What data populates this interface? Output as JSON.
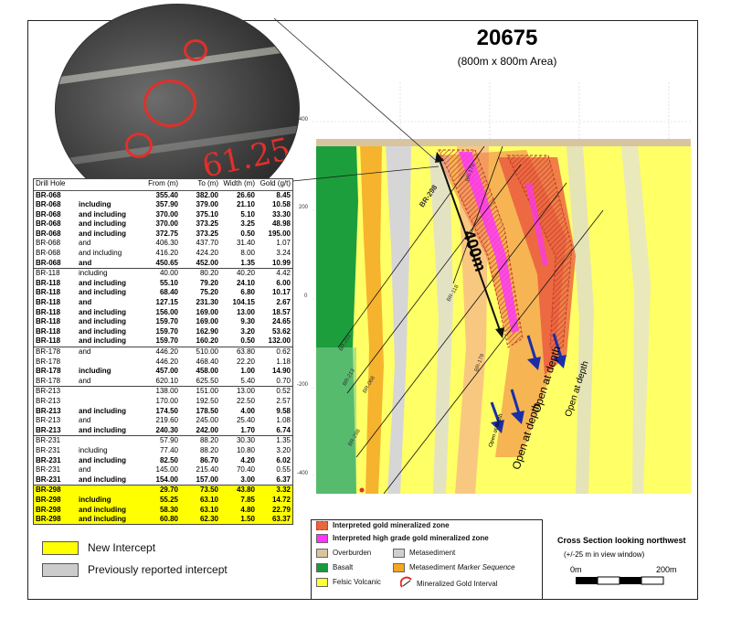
{
  "section": {
    "title": "20675",
    "subtitle": "(800m x 800m Area)",
    "elevations": [
      "400",
      "200",
      "0",
      "-200",
      "-400"
    ],
    "drill_labels": [
      "BR-298",
      "BR-178",
      "BR-118",
      "BR-231",
      "BR-213",
      "BR-068",
      "BR-178",
      "BR-298"
    ],
    "length_label": "400m",
    "open_labels": [
      "Open at depth",
      "Open at depth",
      "Open at depth",
      "Open at depth"
    ]
  },
  "table": {
    "headers": [
      "Drill Hole",
      "",
      "From (m)",
      "To (m)",
      "Width (m)",
      "Gold (g/t)"
    ],
    "rows": [
      {
        "hole": "BR-068",
        "note": "",
        "from": "355.40",
        "to": "382.00",
        "width": "26.60",
        "gold": "8.45",
        "bold": true,
        "group_top": false,
        "new": false
      },
      {
        "hole": "BR-068",
        "note": "including",
        "from": "357.90",
        "to": "379.00",
        "width": "21.10",
        "gold": "10.58",
        "bold": true,
        "group_top": false,
        "new": false
      },
      {
        "hole": "BR-068",
        "note": "and including",
        "from": "370.00",
        "to": "375.10",
        "width": "5.10",
        "gold": "33.30",
        "bold": true,
        "group_top": false,
        "new": false
      },
      {
        "hole": "BR-068",
        "note": "and including",
        "from": "370.00",
        "to": "373.25",
        "width": "3.25",
        "gold": "48.98",
        "bold": true,
        "group_top": false,
        "new": false
      },
      {
        "hole": "BR-068",
        "note": "and including",
        "from": "372.75",
        "to": "373.25",
        "width": "0.50",
        "gold": "195.00",
        "bold": true,
        "group_top": false,
        "new": false
      },
      {
        "hole": "BR-068",
        "note": "and",
        "from": "406.30",
        "to": "437.70",
        "width": "31.40",
        "gold": "1.07",
        "bold": false,
        "group_top": false,
        "new": false
      },
      {
        "hole": "BR-068",
        "note": "and including",
        "from": "416.20",
        "to": "424.20",
        "width": "8.00",
        "gold": "3.24",
        "bold": false,
        "group_top": false,
        "new": false
      },
      {
        "hole": "BR-068",
        "note": "and",
        "from": "450.65",
        "to": "452.00",
        "width": "1.35",
        "gold": "10.99",
        "bold": true,
        "group_top": false,
        "new": false
      },
      {
        "hole": "BR-118",
        "note": "including",
        "from": "40.00",
        "to": "80.20",
        "width": "40.20",
        "gold": "4.42",
        "bold": false,
        "group_top": true,
        "new": false
      },
      {
        "hole": "BR-118",
        "note": "and including",
        "from": "55.10",
        "to": "79.20",
        "width": "24.10",
        "gold": "6.00",
        "bold": true,
        "group_top": false,
        "new": false
      },
      {
        "hole": "BR-118",
        "note": "and including",
        "from": "68.40",
        "to": "75.20",
        "width": "6.80",
        "gold": "10.17",
        "bold": true,
        "group_top": false,
        "new": false
      },
      {
        "hole": "BR-118",
        "note": "and",
        "from": "127.15",
        "to": "231.30",
        "width": "104.15",
        "gold": "2.67",
        "bold": true,
        "group_top": false,
        "new": false
      },
      {
        "hole": "BR-118",
        "note": "and including",
        "from": "156.00",
        "to": "169.00",
        "width": "13.00",
        "gold": "18.57",
        "bold": true,
        "group_top": false,
        "new": false
      },
      {
        "hole": "BR-118",
        "note": "and including",
        "from": "159.70",
        "to": "169.00",
        "width": "9.30",
        "gold": "24.65",
        "bold": true,
        "group_top": false,
        "new": false
      },
      {
        "hole": "BR-118",
        "note": "and including",
        "from": "159.70",
        "to": "162.90",
        "width": "3.20",
        "gold": "53.62",
        "bold": true,
        "group_top": false,
        "new": false
      },
      {
        "hole": "BR-118",
        "note": "and including",
        "from": "159.70",
        "to": "160.20",
        "width": "0.50",
        "gold": "132.00",
        "bold": true,
        "group_top": false,
        "new": false
      },
      {
        "hole": "BR-178",
        "note": "and",
        "from": "446.20",
        "to": "510.00",
        "width": "63.80",
        "gold": "0.62",
        "bold": false,
        "group_top": true,
        "new": false
      },
      {
        "hole": "BR-178",
        "note": "",
        "from": "446.20",
        "to": "468.40",
        "width": "22.20",
        "gold": "1.18",
        "bold": false,
        "group_top": false,
        "new": false
      },
      {
        "hole": "BR-178",
        "note": "including",
        "from": "457.00",
        "to": "458.00",
        "width": "1.00",
        "gold": "14.90",
        "bold": true,
        "group_top": false,
        "new": false
      },
      {
        "hole": "BR-178",
        "note": "and",
        "from": "620.10",
        "to": "625.50",
        "width": "5.40",
        "gold": "0.70",
        "bold": false,
        "group_top": false,
        "new": false
      },
      {
        "hole": "BR-213",
        "note": "",
        "from": "138.00",
        "to": "151.00",
        "width": "13.00",
        "gold": "0.52",
        "bold": false,
        "group_top": true,
        "new": false
      },
      {
        "hole": "BR-213",
        "note": "",
        "from": "170.00",
        "to": "192.50",
        "width": "22.50",
        "gold": "2.57",
        "bold": false,
        "group_top": false,
        "new": false
      },
      {
        "hole": "BR-213",
        "note": "and including",
        "from": "174.50",
        "to": "178.50",
        "width": "4.00",
        "gold": "9.58",
        "bold": true,
        "group_top": false,
        "new": false
      },
      {
        "hole": "BR-213",
        "note": "and",
        "from": "219.60",
        "to": "245.00",
        "width": "25.40",
        "gold": "1.08",
        "bold": false,
        "group_top": false,
        "new": false
      },
      {
        "hole": "BR-213",
        "note": "and including",
        "from": "240.30",
        "to": "242.00",
        "width": "1.70",
        "gold": "6.74",
        "bold": true,
        "group_top": false,
        "new": false
      },
      {
        "hole": "BR-231",
        "note": "",
        "from": "57.90",
        "to": "88.20",
        "width": "30.30",
        "gold": "1.35",
        "bold": false,
        "group_top": true,
        "new": false
      },
      {
        "hole": "BR-231",
        "note": "including",
        "from": "77.40",
        "to": "88.20",
        "width": "10.80",
        "gold": "3.20",
        "bold": false,
        "group_top": false,
        "new": false
      },
      {
        "hole": "BR-231",
        "note": "and including",
        "from": "82.50",
        "to": "86.70",
        "width": "4.20",
        "gold": "6.02",
        "bold": true,
        "group_top": false,
        "new": false
      },
      {
        "hole": "BR-231",
        "note": "and",
        "from": "145.00",
        "to": "215.40",
        "width": "70.40",
        "gold": "0.55",
        "bold": false,
        "group_top": false,
        "new": false
      },
      {
        "hole": "BR-231",
        "note": "and including",
        "from": "154.00",
        "to": "157.00",
        "width": "3.00",
        "gold": "6.37",
        "bold": true,
        "group_top": false,
        "new": false
      },
      {
        "hole": "BR-298",
        "note": "",
        "from": "29.70",
        "to": "73.50",
        "width": "43.80",
        "gold": "3.32",
        "bold": true,
        "group_top": true,
        "new": true
      },
      {
        "hole": "BR-298",
        "note": "including",
        "from": "55.25",
        "to": "63.10",
        "width": "7.85",
        "gold": "14.72",
        "bold": true,
        "group_top": false,
        "new": true
      },
      {
        "hole": "BR-298",
        "note": "and including",
        "from": "58.30",
        "to": "63.10",
        "width": "4.80",
        "gold": "22.79",
        "bold": true,
        "group_top": false,
        "new": true
      },
      {
        "hole": "BR-298",
        "note": "and including",
        "from": "60.80",
        "to": "62.30",
        "width": "1.50",
        "gold": "63.37",
        "bold": true,
        "group_top": false,
        "new": true
      }
    ]
  },
  "photo": {
    "annotation": "61.25"
  },
  "legend_left": {
    "new": {
      "label": "New Intercept",
      "color": "#ffff00"
    },
    "prev": {
      "label": "Previously reported  intercept",
      "color": "#cccccc"
    }
  },
  "legend_bottom": {
    "zone": "Interpreted gold mineralized zone",
    "high_grade": "Interpreted high grade gold mineralized zone",
    "overburden": "Overburden",
    "metasediment": "Metasediment",
    "basalt": "Basalt",
    "marker": "Metasediment",
    "marker_em": "Marker Sequence",
    "felsic": "Felsic Volcanic",
    "interval": "Mineralized Gold Interval",
    "colors": {
      "zone": "#e8663c",
      "high_grade": "#ff33ff",
      "overburden": "#d9c4a0",
      "metasediment": "#cfcfcf",
      "basalt": "#1a9a3a",
      "marker": "#f5a623",
      "felsic": "#ffff33"
    }
  },
  "scale": {
    "title": "Cross Section looking northwest",
    "sub": "(+/-25 m in view window)",
    "left": "0m",
    "right": "200m"
  }
}
